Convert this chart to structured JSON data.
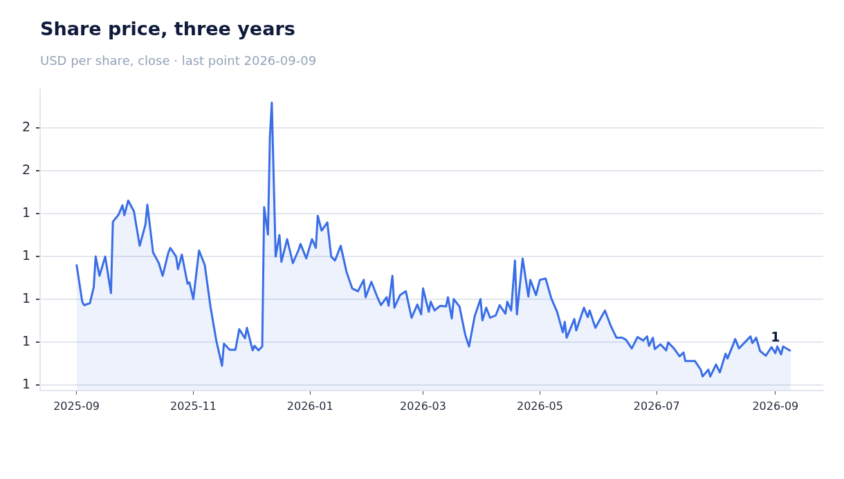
{
  "chart_data": {
    "type": "area",
    "title": "Share price, three years",
    "subtitle": "USD per share, close · last point 2026-09-09",
    "x": [
      "2025-09-01",
      "2025-09-04",
      "2025-09-05",
      "2025-09-08",
      "2025-09-10",
      "2025-09-11",
      "2025-09-13",
      "2025-09-16",
      "2025-09-19",
      "2025-09-20",
      "2025-09-23",
      "2025-09-25",
      "2025-09-26",
      "2025-09-28",
      "2025-10-01",
      "2025-10-04",
      "2025-10-07",
      "2025-10-08",
      "2025-10-11",
      "2025-10-14",
      "2025-10-16",
      "2025-10-19",
      "2025-10-20",
      "2025-10-23",
      "2025-10-24",
      "2025-10-26",
      "2025-10-29",
      "2025-10-30",
      "2025-11-01",
      "2025-11-04",
      "2025-11-07",
      "2025-11-10",
      "2025-11-13",
      "2025-11-16",
      "2025-11-17",
      "2025-11-20",
      "2025-11-23",
      "2025-11-25",
      "2025-11-28",
      "2025-11-29",
      "2025-12-02",
      "2025-12-03",
      "2025-12-05",
      "2025-12-07",
      "2025-12-08",
      "2025-12-10",
      "2025-12-11",
      "2025-12-12",
      "2025-12-14",
      "2025-12-16",
      "2025-12-17",
      "2025-12-20",
      "2025-12-23",
      "2025-12-26",
      "2025-12-27",
      "2025-12-30",
      "2026-01-02",
      "2026-01-04",
      "2026-01-05",
      "2026-01-07",
      "2026-01-10",
      "2026-01-12",
      "2026-01-14",
      "2026-01-17",
      "2026-01-20",
      "2026-01-23",
      "2026-01-26",
      "2026-01-29",
      "2026-01-30",
      "2026-02-02",
      "2026-02-05",
      "2026-02-07",
      "2026-02-10",
      "2026-02-11",
      "2026-02-13",
      "2026-02-14",
      "2026-02-17",
      "2026-02-20",
      "2026-02-23",
      "2026-02-26",
      "2026-02-28",
      "2026-03-01",
      "2026-03-04",
      "2026-03-05",
      "2026-03-07",
      "2026-03-10",
      "2026-03-13",
      "2026-03-14",
      "2026-03-16",
      "2026-03-17",
      "2026-03-20",
      "2026-03-23",
      "2026-03-25",
      "2026-03-28",
      "2026-03-31",
      "2026-04-01",
      "2026-04-03",
      "2026-04-05",
      "2026-04-08",
      "2026-04-10",
      "2026-04-13",
      "2026-04-14",
      "2026-04-16",
      "2026-04-18",
      "2026-04-19",
      "2026-04-22",
      "2026-04-25",
      "2026-04-26",
      "2026-04-29",
      "2026-05-01",
      "2026-05-04",
      "2026-05-07",
      "2026-05-10",
      "2026-05-13",
      "2026-05-14",
      "2026-05-15",
      "2026-05-19",
      "2026-05-20",
      "2026-05-24",
      "2026-05-26",
      "2026-05-27",
      "2026-05-30",
      "2026-06-04",
      "2026-06-07",
      "2026-06-10",
      "2026-06-13",
      "2026-06-15",
      "2026-06-18",
      "2026-06-21",
      "2026-06-24",
      "2026-06-26",
      "2026-06-27",
      "2026-06-29",
      "2026-06-30",
      "2026-07-03",
      "2026-07-06",
      "2026-07-07",
      "2026-07-10",
      "2026-07-13",
      "2026-07-15",
      "2026-07-16",
      "2026-07-21",
      "2026-07-24",
      "2026-07-25",
      "2026-07-28",
      "2026-07-29",
      "2026-08-01",
      "2026-08-03",
      "2026-08-06",
      "2026-08-07",
      "2026-08-10",
      "2026-08-11",
      "2026-08-13",
      "2026-08-16",
      "2026-08-19",
      "2026-08-20",
      "2026-08-22",
      "2026-08-24",
      "2026-08-27",
      "2026-08-30",
      "2026-09-01",
      "2026-09-02",
      "2026-09-04",
      "2026-09-05",
      "2026-09-09"
    ],
    "series": [
      {
        "color": "#3a6ee6",
        "values": [
          1.163,
          0.989,
          0.973,
          0.982,
          1.057,
          1.2,
          1.11,
          1.2,
          1.029,
          1.362,
          1.396,
          1.439,
          1.393,
          1.461,
          1.411,
          1.25,
          1.349,
          1.442,
          1.219,
          1.169,
          1.11,
          1.219,
          1.24,
          1.2,
          1.141,
          1.209,
          1.073,
          1.079,
          1.001,
          1.228,
          1.16,
          0.964,
          0.808,
          0.69,
          0.793,
          0.765,
          0.765,
          0.861,
          0.818,
          0.867,
          0.762,
          0.783,
          0.762,
          0.78,
          1.43,
          1.303,
          1.757,
          1.918,
          1.2,
          1.3,
          1.175,
          1.281,
          1.169,
          1.231,
          1.259,
          1.191,
          1.281,
          1.24,
          1.39,
          1.321,
          1.359,
          1.2,
          1.181,
          1.25,
          1.129,
          1.051,
          1.038,
          1.091,
          1.01,
          1.082,
          1.013,
          0.973,
          1.01,
          0.97,
          1.11,
          0.961,
          1.02,
          1.038,
          0.914,
          0.976,
          0.93,
          1.051,
          0.942,
          0.989,
          0.948,
          0.97,
          0.967,
          1.01,
          0.911,
          1.001,
          0.967,
          0.836,
          0.78,
          0.923,
          1.001,
          0.902,
          0.961,
          0.914,
          0.926,
          0.973,
          0.933,
          0.989,
          0.948,
          1.181,
          0.93,
          1.191,
          1.013,
          1.091,
          1.02,
          1.091,
          1.097,
          1.004,
          0.942,
          0.846,
          0.895,
          0.821,
          0.908,
          0.855,
          0.961,
          0.917,
          0.948,
          0.867,
          0.948,
          0.877,
          0.821,
          0.821,
          0.811,
          0.771,
          0.824,
          0.808,
          0.827,
          0.783,
          0.821,
          0.768,
          0.79,
          0.762,
          0.799,
          0.771,
          0.734,
          0.752,
          0.712,
          0.712,
          0.672,
          0.64,
          0.672,
          0.64,
          0.696,
          0.659,
          0.746,
          0.724,
          0.79,
          0.815,
          0.771,
          0.799,
          0.827,
          0.796,
          0.821,
          0.759,
          0.737,
          0.777,
          0.749,
          0.78,
          0.743,
          0.78,
          0.759
        ]
      }
    ],
    "xlim": [
      "2025-08-13",
      "2026-09-26"
    ],
    "xticks": [
      "2025-09",
      "2025-11",
      "2026-01",
      "2026-03",
      "2026-05",
      "2026-07",
      "2026-09"
    ],
    "ylim": [
      0.575,
      1.98
    ],
    "yticks": [
      {
        "value": 0.6,
        "label": "1"
      },
      {
        "value": 0.8,
        "label": "1"
      },
      {
        "value": 1.0,
        "label": "1"
      },
      {
        "value": 1.2,
        "label": "1"
      },
      {
        "value": 1.4,
        "label": "1"
      },
      {
        "value": 1.6,
        "label": "2"
      },
      {
        "value": 1.8,
        "label": "2"
      }
    ],
    "grid": "y",
    "legend": false,
    "marker": "none",
    "line_style": "solid",
    "annotations": [
      {
        "text": "1",
        "x": "2026-09-01",
        "y": 0.749
      }
    ]
  }
}
